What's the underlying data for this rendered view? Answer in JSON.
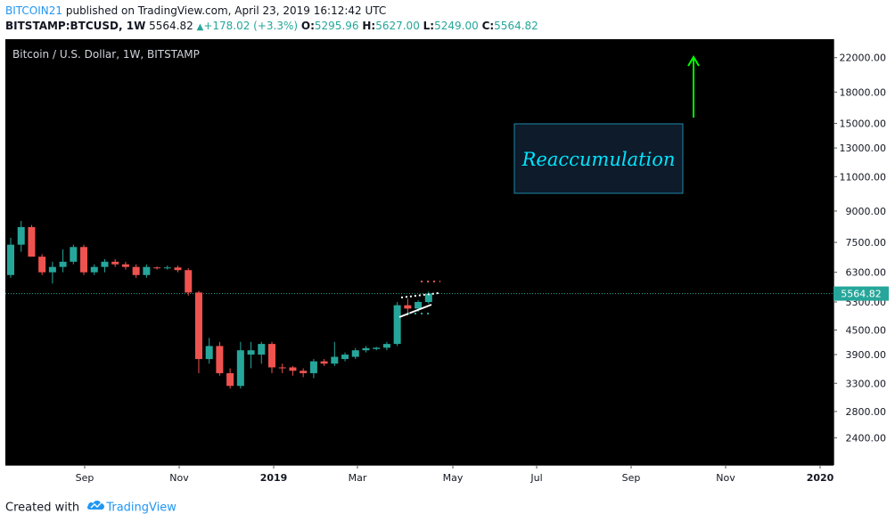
{
  "header": {
    "author": "BITCOIN21",
    "published_text": "published on TradingView.com, April 23, 2019 16:12:42 UTC",
    "symbol": "BITSTAMP:BTCUSD, 1W",
    "price": "5564.82",
    "change": "+178.02 (+3.3%)",
    "o_label": "O:",
    "o_value": "5295.96",
    "h_label": "H:",
    "h_value": "5627.00",
    "l_label": "L:",
    "l_value": "5249.00",
    "c_label": "C:",
    "c_value": "5564.82"
  },
  "footer": {
    "created_with": "Created with",
    "brand": "TradingView"
  },
  "chart_data": {
    "type": "candlestick",
    "title": "Bitcoin / U.S. Dollar, 1W, BITSTAMP",
    "y_scale": "log",
    "ylim": [
      2050,
      24500
    ],
    "y_ticks": [
      "22000.00",
      "18000.00",
      "15000.00",
      "13000.00",
      "11000.00",
      "9000.00",
      "7500.00",
      "6300.00",
      "5300.00",
      "4500.00",
      "3900.00",
      "3300.00",
      "2800.00",
      "2400.00"
    ],
    "x_ticks": [
      "Sep",
      "Nov",
      "2019",
      "Mar",
      "May",
      "Jul",
      "Sep",
      "Nov",
      "2020"
    ],
    "last_price_label": "5564.82",
    "annotation_text": "Reaccumulation",
    "colors": {
      "up": "#26a69a",
      "down": "#ef5350",
      "background": "#000000",
      "annotation": "#00e5ff",
      "arrow": "#00ff00"
    },
    "candles": [
      {
        "o": 6200,
        "h": 7700,
        "l": 6100,
        "c": 7400
      },
      {
        "o": 7400,
        "h": 8500,
        "l": 7100,
        "c": 8200
      },
      {
        "o": 8200,
        "h": 8300,
        "l": 6900,
        "c": 6900
      },
      {
        "o": 6900,
        "h": 7000,
        "l": 6200,
        "c": 6300
      },
      {
        "o": 6300,
        "h": 6700,
        "l": 5900,
        "c": 6500
      },
      {
        "o": 6500,
        "h": 7200,
        "l": 6300,
        "c": 6700
      },
      {
        "o": 6700,
        "h": 7400,
        "l": 6600,
        "c": 7300
      },
      {
        "o": 7300,
        "h": 7400,
        "l": 6200,
        "c": 6300
      },
      {
        "o": 6300,
        "h": 6600,
        "l": 6200,
        "c": 6500
      },
      {
        "o": 6500,
        "h": 6800,
        "l": 6300,
        "c": 6700
      },
      {
        "o": 6700,
        "h": 6800,
        "l": 6500,
        "c": 6600
      },
      {
        "o": 6600,
        "h": 6700,
        "l": 6400,
        "c": 6500
      },
      {
        "o": 6500,
        "h": 6600,
        "l": 6100,
        "c": 6200
      },
      {
        "o": 6200,
        "h": 6600,
        "l": 6100,
        "c": 6500
      },
      {
        "o": 6480,
        "h": 6520,
        "l": 6400,
        "c": 6450
      },
      {
        "o": 6450,
        "h": 6550,
        "l": 6400,
        "c": 6480
      },
      {
        "o": 6480,
        "h": 6550,
        "l": 6300,
        "c": 6380
      },
      {
        "o": 6380,
        "h": 6450,
        "l": 5500,
        "c": 5600
      },
      {
        "o": 5600,
        "h": 5650,
        "l": 3500,
        "c": 3800
      },
      {
        "o": 3800,
        "h": 4300,
        "l": 3700,
        "c": 4100
      },
      {
        "o": 4100,
        "h": 4200,
        "l": 3450,
        "c": 3500
      },
      {
        "o": 3500,
        "h": 3600,
        "l": 3200,
        "c": 3250
      },
      {
        "o": 3250,
        "h": 4200,
        "l": 3200,
        "c": 4000
      },
      {
        "o": 3900,
        "h": 4200,
        "l": 3600,
        "c": 4000
      },
      {
        "o": 3900,
        "h": 4200,
        "l": 3700,
        "c": 4150
      },
      {
        "o": 4150,
        "h": 4200,
        "l": 3500,
        "c": 3620
      },
      {
        "o": 3620,
        "h": 3700,
        "l": 3500,
        "c": 3600
      },
      {
        "o": 3620,
        "h": 3650,
        "l": 3450,
        "c": 3550
      },
      {
        "o": 3550,
        "h": 3600,
        "l": 3420,
        "c": 3500
      },
      {
        "o": 3500,
        "h": 3800,
        "l": 3400,
        "c": 3750
      },
      {
        "o": 3750,
        "h": 3800,
        "l": 3650,
        "c": 3700
      },
      {
        "o": 3700,
        "h": 4200,
        "l": 3650,
        "c": 3850
      },
      {
        "o": 3800,
        "h": 3950,
        "l": 3750,
        "c": 3900
      },
      {
        "o": 3850,
        "h": 4050,
        "l": 3800,
        "c": 4000
      },
      {
        "o": 4000,
        "h": 4100,
        "l": 3950,
        "c": 4050
      },
      {
        "o": 4030,
        "h": 4080,
        "l": 4000,
        "c": 4060
      },
      {
        "o": 4060,
        "h": 4200,
        "l": 4000,
        "c": 4150
      },
      {
        "o": 4150,
        "h": 5300,
        "l": 4100,
        "c": 5200
      },
      {
        "o": 5200,
        "h": 5400,
        "l": 4900,
        "c": 5100
      },
      {
        "o": 5100,
        "h": 5350,
        "l": 5000,
        "c": 5300
      },
      {
        "o": 5295.96,
        "h": 5627,
        "l": 5249,
        "c": 5564.82
      }
    ]
  }
}
